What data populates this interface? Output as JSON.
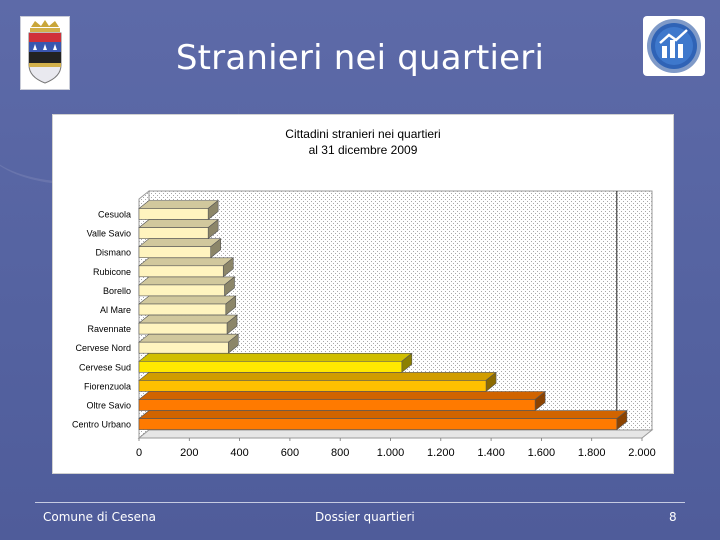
{
  "slide": {
    "title": "Stranieri nei quartieri",
    "footer_left": "Comune di Cesena",
    "footer_center": "Dossier quartieri",
    "page_number": "8"
  },
  "colors": {
    "background": "#5a67a5",
    "bar_light": "#fff4bf",
    "bar_yellow": "#ffe900",
    "bar_gold": "#ffc000",
    "bar_orange": "#ff7a00"
  },
  "chart_data": {
    "type": "bar",
    "orientation": "horizontal",
    "title": "Cittadini stranieri nei quartieri",
    "subtitle": "al 31 dicembre 2009",
    "categories": [
      "Cesuola",
      "Valle Savio",
      "Dismano",
      "Rubicone",
      "Borello",
      "Al Mare",
      "Ravennate",
      "Cervese Nord",
      "Cervese Sud",
      "Fiorenzuola",
      "Oltre Savio",
      "Centro Urbano"
    ],
    "values": [
      275,
      275,
      285,
      335,
      340,
      345,
      350,
      355,
      1045,
      1380,
      1575,
      1900
    ],
    "xlim": [
      0,
      2000
    ],
    "ticks": [
      "0",
      "200",
      "400",
      "600",
      "800",
      "1.000",
      "1.200",
      "1.400",
      "1.600",
      "1.800",
      "2.000"
    ],
    "grid": "patterned background",
    "legend": "none",
    "style": "3d"
  }
}
